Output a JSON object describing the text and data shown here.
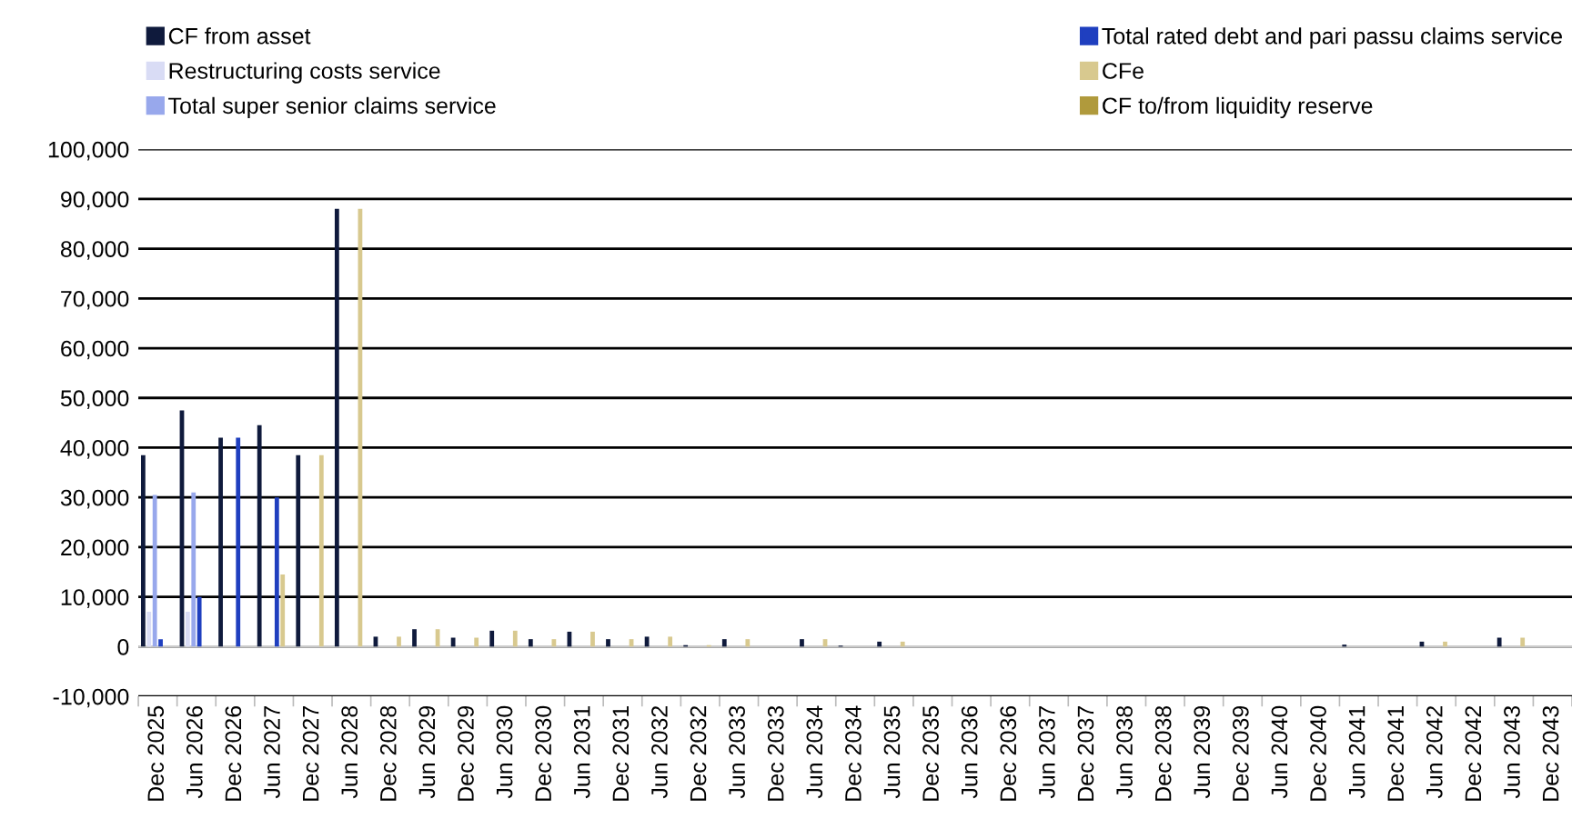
{
  "chart_data": {
    "type": "bar",
    "categories": [
      "Dec 2025",
      "Jun 2026",
      "Dec 2026",
      "Jun 2027",
      "Dec 2027",
      "Jun 2028",
      "Dec 2028",
      "Jun 2029",
      "Dec 2029",
      "Jun 2030",
      "Dec 2030",
      "Jun 2031",
      "Dec 2031",
      "Jun 2032",
      "Dec 2032",
      "Jun 2033",
      "Dec 2033",
      "Jun 2034",
      "Dec 2034",
      "Jun 2035",
      "Dec 2035",
      "Jun 2036",
      "Dec 2036",
      "Jun 2037",
      "Dec 2037",
      "Jun 2038",
      "Dec 2038",
      "Jun 2039",
      "Dec 2039",
      "Jun 2040",
      "Dec 2040",
      "Jun 2041",
      "Dec 2041",
      "Jun 2042",
      "Dec 2042",
      "Jun 2043",
      "Dec 2043"
    ],
    "series": [
      {
        "name": "CF from asset",
        "color": "#0f1a3c",
        "values": [
          38500,
          47500,
          42000,
          44500,
          38500,
          88000,
          2000,
          3500,
          1800,
          3200,
          1500,
          3000,
          1500,
          2000,
          300,
          1500,
          0,
          1500,
          200,
          1000,
          0,
          0,
          0,
          0,
          0,
          0,
          0,
          0,
          0,
          0,
          0,
          400,
          0,
          1000,
          0,
          1800,
          0
        ]
      },
      {
        "name": "Restructuring costs service",
        "color": "#d9dcf5",
        "values": [
          7000,
          7000,
          0,
          0,
          0,
          0,
          0,
          0,
          0,
          0,
          0,
          0,
          0,
          0,
          0,
          0,
          0,
          0,
          0,
          0,
          0,
          0,
          0,
          0,
          0,
          0,
          0,
          0,
          0,
          0,
          0,
          0,
          0,
          0,
          0,
          0,
          0
        ]
      },
      {
        "name": "Total super senior claims service",
        "color": "#98a8ec",
        "values": [
          30500,
          31000,
          0,
          0,
          0,
          0,
          0,
          0,
          0,
          0,
          0,
          0,
          0,
          0,
          0,
          0,
          0,
          0,
          0,
          0,
          0,
          0,
          0,
          0,
          0,
          0,
          0,
          0,
          0,
          0,
          0,
          0,
          0,
          0,
          0,
          0,
          0
        ]
      },
      {
        "name": "Total rated debt and pari passu claims service",
        "color": "#1f3fbf",
        "values": [
          1500,
          10000,
          42000,
          30000,
          0,
          0,
          0,
          0,
          0,
          0,
          0,
          0,
          0,
          0,
          0,
          0,
          0,
          0,
          0,
          0,
          0,
          0,
          0,
          0,
          0,
          0,
          0,
          0,
          0,
          0,
          0,
          0,
          0,
          0,
          0,
          0,
          0
        ]
      },
      {
        "name": "CFe",
        "color": "#d8c98f",
        "values": [
          0,
          0,
          0,
          14500,
          38500,
          88000,
          2000,
          3500,
          1800,
          3200,
          1500,
          3000,
          1500,
          2000,
          300,
          1500,
          0,
          1500,
          0,
          1000,
          0,
          0,
          0,
          0,
          0,
          0,
          0,
          0,
          0,
          0,
          0,
          0,
          0,
          1000,
          0,
          1800,
          0
        ]
      },
      {
        "name": "CF to/from liquidity reserve",
        "color": "#b09a3c",
        "values": [
          0,
          0,
          0,
          0,
          0,
          0,
          0,
          0,
          0,
          0,
          0,
          0,
          0,
          0,
          0,
          0,
          0,
          0,
          0,
          0,
          0,
          0,
          0,
          0,
          0,
          0,
          0,
          0,
          0,
          0,
          0,
          0,
          0,
          0,
          0,
          0,
          0
        ]
      }
    ],
    "ylim": [
      -10000,
      100000
    ],
    "yticks": [
      {
        "value": -10000,
        "label": "-10,000"
      },
      {
        "value": 0,
        "label": "0"
      },
      {
        "value": 10000,
        "label": "10,000"
      },
      {
        "value": 20000,
        "label": "20,000"
      },
      {
        "value": 30000,
        "label": "30,000"
      },
      {
        "value": 40000,
        "label": "40,000"
      },
      {
        "value": 50000,
        "label": "50,000"
      },
      {
        "value": 60000,
        "label": "60,000"
      },
      {
        "value": 70000,
        "label": "70,000"
      },
      {
        "value": 80000,
        "label": "80,000"
      },
      {
        "value": 90000,
        "label": "90,000"
      },
      {
        "value": 100000,
        "label": "100,000"
      }
    ],
    "grid": "y",
    "legend": "top"
  }
}
